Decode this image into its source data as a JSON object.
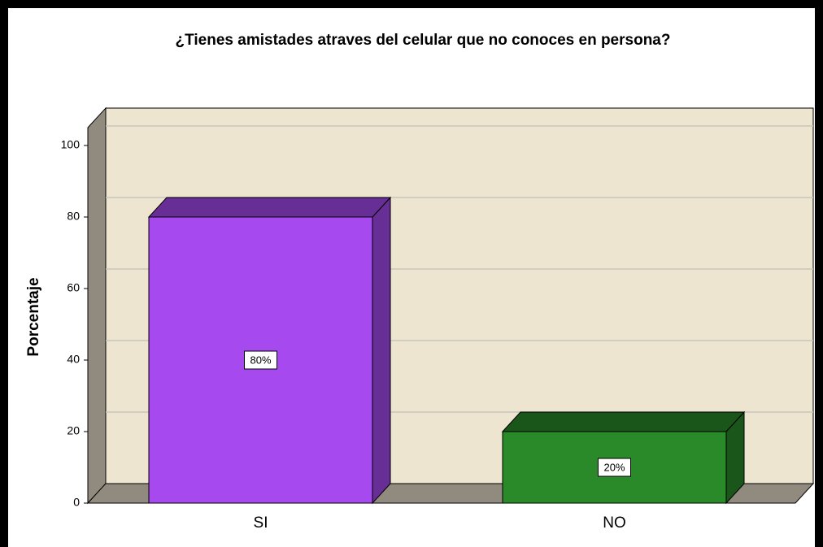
{
  "chart_data": {
    "type": "bar3d",
    "title": "¿Tienes amistades atraves del celular que no conoces en persona?",
    "y_label": "Porcentaje",
    "categories": [
      "SI",
      "NO"
    ],
    "values": [
      80,
      20
    ],
    "value_labels": [
      "80%",
      "20%"
    ],
    "colors": [
      "#a64af0",
      "#2a8a2a"
    ],
    "ylim": [
      0,
      105
    ],
    "yticks": [
      0,
      20,
      40,
      60,
      80,
      100
    ],
    "grid": true
  }
}
